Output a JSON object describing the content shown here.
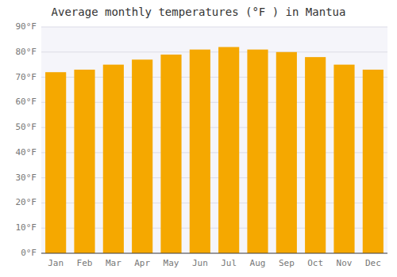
{
  "chart_data": {
    "type": "bar",
    "title": "Average monthly temperatures (°F ) in Mantua",
    "categories": [
      "Jan",
      "Feb",
      "Mar",
      "Apr",
      "May",
      "Jun",
      "Jul",
      "Aug",
      "Sep",
      "Oct",
      "Nov",
      "Dec"
    ],
    "values": [
      72,
      73,
      75,
      77,
      79,
      81,
      82,
      81,
      80,
      78,
      75,
      73
    ],
    "color": "#F5A800",
    "ylim": [
      0,
      90
    ],
    "yticks": [
      {
        "value": 0,
        "label": "0°F"
      },
      {
        "value": 10,
        "label": "10°F"
      },
      {
        "value": 20,
        "label": "20°F"
      },
      {
        "value": 30,
        "label": "30°F"
      },
      {
        "value": 40,
        "label": "40°F"
      },
      {
        "value": 50,
        "label": "50°F"
      },
      {
        "value": 60,
        "label": "60°F"
      },
      {
        "value": 70,
        "label": "70°F"
      },
      {
        "value": 80,
        "label": "80°F"
      },
      {
        "value": 90,
        "label": "90°F"
      }
    ],
    "grid": true
  }
}
